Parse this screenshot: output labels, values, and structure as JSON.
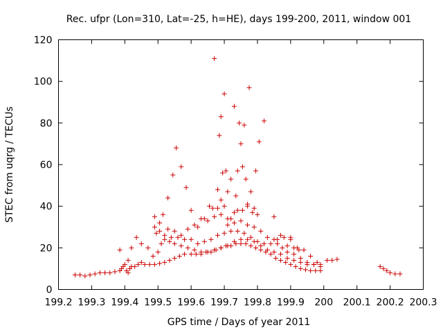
{
  "chart_data": {
    "type": "scatter",
    "title": "Rec. ufpr (Lon=310, Lat=-25, h=HE), days 199-200, 2011, window 001",
    "xlabel": "GPS time / Days of year 2011",
    "ylabel": "STEC from uqrg / TECUs",
    "xlim": [
      199.2,
      200.3
    ],
    "ylim": [
      0,
      120
    ],
    "xticks": [
      "199.2",
      "199.3",
      "199.4",
      "199.5",
      "199.6",
      "199.7",
      "199.8",
      "199.9",
      "200",
      "200.1",
      "200.2",
      "200.3"
    ],
    "xtick_values": [
      199.2,
      199.3,
      199.4,
      199.5,
      199.6,
      199.7,
      199.8,
      199.9,
      200.0,
      200.1,
      200.2,
      200.3
    ],
    "yticks": [
      "0",
      "20",
      "40",
      "60",
      "80",
      "100",
      "120"
    ],
    "ytick_values": [
      0,
      20,
      40,
      60,
      80,
      100,
      120
    ],
    "grid": false,
    "marker": "+",
    "color": "#cc0000",
    "series": [
      {
        "name": "STEC",
        "points": [
          [
            199.25,
            7
          ],
          [
            199.265,
            7
          ],
          [
            199.28,
            6.5
          ],
          [
            199.295,
            7
          ],
          [
            199.31,
            7.5
          ],
          [
            199.325,
            8
          ],
          [
            199.34,
            8
          ],
          [
            199.355,
            8
          ],
          [
            199.37,
            8.5
          ],
          [
            199.385,
            9
          ],
          [
            199.39,
            10
          ],
          [
            199.395,
            11
          ],
          [
            199.4,
            12
          ],
          [
            199.405,
            9
          ],
          [
            199.41,
            8
          ],
          [
            199.415,
            10
          ],
          [
            199.42,
            11
          ],
          [
            199.43,
            11
          ],
          [
            199.44,
            12
          ],
          [
            199.45,
            13
          ],
          [
            199.46,
            12
          ],
          [
            199.475,
            12
          ],
          [
            199.49,
            12
          ],
          [
            199.505,
            12.5
          ],
          [
            199.52,
            13
          ],
          [
            199.535,
            14
          ],
          [
            199.55,
            15
          ],
          [
            199.565,
            16
          ],
          [
            199.58,
            17
          ],
          [
            199.6,
            17
          ],
          [
            199.615,
            17
          ],
          [
            199.63,
            17
          ],
          [
            199.645,
            18
          ],
          [
            199.66,
            18
          ],
          [
            199.675,
            19
          ],
          [
            199.69,
            20
          ],
          [
            199.705,
            21
          ],
          [
            199.72,
            21
          ],
          [
            199.735,
            22
          ],
          [
            199.75,
            22
          ],
          [
            199.765,
            22
          ],
          [
            199.78,
            21
          ],
          [
            199.795,
            20
          ],
          [
            199.81,
            19
          ],
          [
            199.825,
            18
          ],
          [
            199.84,
            17
          ],
          [
            199.855,
            15
          ],
          [
            199.87,
            14
          ],
          [
            199.885,
            13
          ],
          [
            199.9,
            12
          ],
          [
            199.915,
            11
          ],
          [
            199.93,
            10
          ],
          [
            199.945,
            9.5
          ],
          [
            199.96,
            9
          ],
          [
            199.975,
            9
          ],
          [
            199.99,
            9
          ],
          [
            199.385,
            19
          ],
          [
            199.41,
            14
          ],
          [
            199.42,
            20
          ],
          [
            199.435,
            25
          ],
          [
            199.45,
            22
          ],
          [
            199.47,
            20
          ],
          [
            199.485,
            16
          ],
          [
            199.5,
            18
          ],
          [
            199.51,
            22
          ],
          [
            199.52,
            24
          ],
          [
            199.535,
            23
          ],
          [
            199.55,
            22
          ],
          [
            199.57,
            21
          ],
          [
            199.59,
            20
          ],
          [
            199.61,
            19
          ],
          [
            199.63,
            18
          ],
          [
            199.65,
            18
          ],
          [
            199.67,
            19
          ],
          [
            199.69,
            20
          ],
          [
            199.71,
            21
          ],
          [
            199.73,
            23
          ],
          [
            199.75,
            24
          ],
          [
            199.77,
            24
          ],
          [
            199.79,
            23
          ],
          [
            199.81,
            21
          ],
          [
            199.83,
            19
          ],
          [
            199.85,
            18
          ],
          [
            199.87,
            17
          ],
          [
            199.89,
            15
          ],
          [
            199.91,
            14
          ],
          [
            199.93,
            13
          ],
          [
            199.95,
            12
          ],
          [
            199.97,
            12
          ],
          [
            199.99,
            11
          ],
          [
            199.49,
            30
          ],
          [
            199.505,
            28
          ],
          [
            199.52,
            26
          ],
          [
            199.54,
            25
          ],
          [
            199.56,
            25
          ],
          [
            199.58,
            24
          ],
          [
            199.6,
            24
          ],
          [
            199.62,
            22
          ],
          [
            199.64,
            23
          ],
          [
            199.66,
            24
          ],
          [
            199.68,
            26
          ],
          [
            199.7,
            27
          ],
          [
            199.72,
            28
          ],
          [
            199.74,
            28
          ],
          [
            199.76,
            27
          ],
          [
            199.78,
            25
          ],
          [
            199.8,
            23
          ],
          [
            199.82,
            22
          ],
          [
            199.84,
            22
          ],
          [
            199.86,
            24
          ],
          [
            199.88,
            25
          ],
          [
            199.9,
            25
          ],
          [
            199.92,
            20
          ],
          [
            199.94,
            19
          ],
          [
            199.96,
            16
          ],
          [
            199.98,
            13
          ],
          [
            199.49,
            35
          ],
          [
            199.505,
            32
          ],
          [
            199.53,
            29
          ],
          [
            199.55,
            28
          ],
          [
            199.57,
            26
          ],
          [
            199.59,
            29
          ],
          [
            199.61,
            31
          ],
          [
            199.63,
            34
          ],
          [
            199.65,
            33
          ],
          [
            199.67,
            35
          ],
          [
            199.69,
            36
          ],
          [
            199.71,
            34
          ],
          [
            199.73,
            32
          ],
          [
            199.75,
            33
          ],
          [
            199.77,
            31
          ],
          [
            199.79,
            30
          ],
          [
            199.81,
            28
          ],
          [
            199.83,
            25
          ],
          [
            199.85,
            24
          ],
          [
            199.87,
            26
          ],
          [
            199.89,
            21
          ],
          [
            199.9,
            24
          ],
          [
            199.91,
            20
          ],
          [
            199.925,
            19
          ],
          [
            199.495,
            27
          ],
          [
            199.515,
            36
          ],
          [
            199.53,
            44
          ],
          [
            199.545,
            55
          ],
          [
            199.555,
            68
          ],
          [
            199.57,
            59
          ],
          [
            199.585,
            49
          ],
          [
            199.6,
            38
          ],
          [
            199.62,
            30
          ],
          [
            199.64,
            34
          ],
          [
            199.655,
            40
          ],
          [
            199.665,
            39
          ],
          [
            199.67,
            111
          ],
          [
            199.68,
            48
          ],
          [
            199.685,
            74
          ],
          [
            199.69,
            83
          ],
          [
            199.695,
            56
          ],
          [
            199.7,
            94
          ],
          [
            199.705,
            57
          ],
          [
            199.71,
            47
          ],
          [
            199.72,
            53
          ],
          [
            199.73,
            88
          ],
          [
            199.735,
            45
          ],
          [
            199.74,
            57
          ],
          [
            199.745,
            80
          ],
          [
            199.75,
            70
          ],
          [
            199.755,
            59
          ],
          [
            199.76,
            79
          ],
          [
            199.765,
            53
          ],
          [
            199.77,
            41
          ],
          [
            199.775,
            97
          ],
          [
            199.78,
            47
          ],
          [
            199.79,
            39
          ],
          [
            199.795,
            57
          ],
          [
            199.805,
            71
          ],
          [
            199.82,
            81
          ],
          [
            199.68,
            39
          ],
          [
            199.69,
            43
          ],
          [
            199.7,
            40
          ],
          [
            199.71,
            31
          ],
          [
            199.72,
            34
          ],
          [
            199.73,
            37
          ],
          [
            199.74,
            38
          ],
          [
            199.755,
            38
          ],
          [
            199.77,
            40
          ],
          [
            199.785,
            37
          ],
          [
            199.8,
            36
          ],
          [
            199.85,
            35
          ],
          [
            199.86,
            22
          ],
          [
            199.875,
            20
          ],
          [
            199.89,
            18
          ],
          [
            199.91,
            17
          ],
          [
            199.93,
            15
          ],
          [
            199.95,
            13
          ],
          [
            199.97,
            12
          ],
          [
            199.99,
            12
          ],
          [
            200.01,
            14
          ],
          [
            200.025,
            14
          ],
          [
            200.04,
            14.5
          ],
          [
            200.17,
            11
          ],
          [
            200.18,
            10
          ],
          [
            200.19,
            9
          ],
          [
            200.2,
            8
          ],
          [
            200.215,
            7.5
          ],
          [
            200.23,
            7.5
          ]
        ]
      }
    ]
  }
}
